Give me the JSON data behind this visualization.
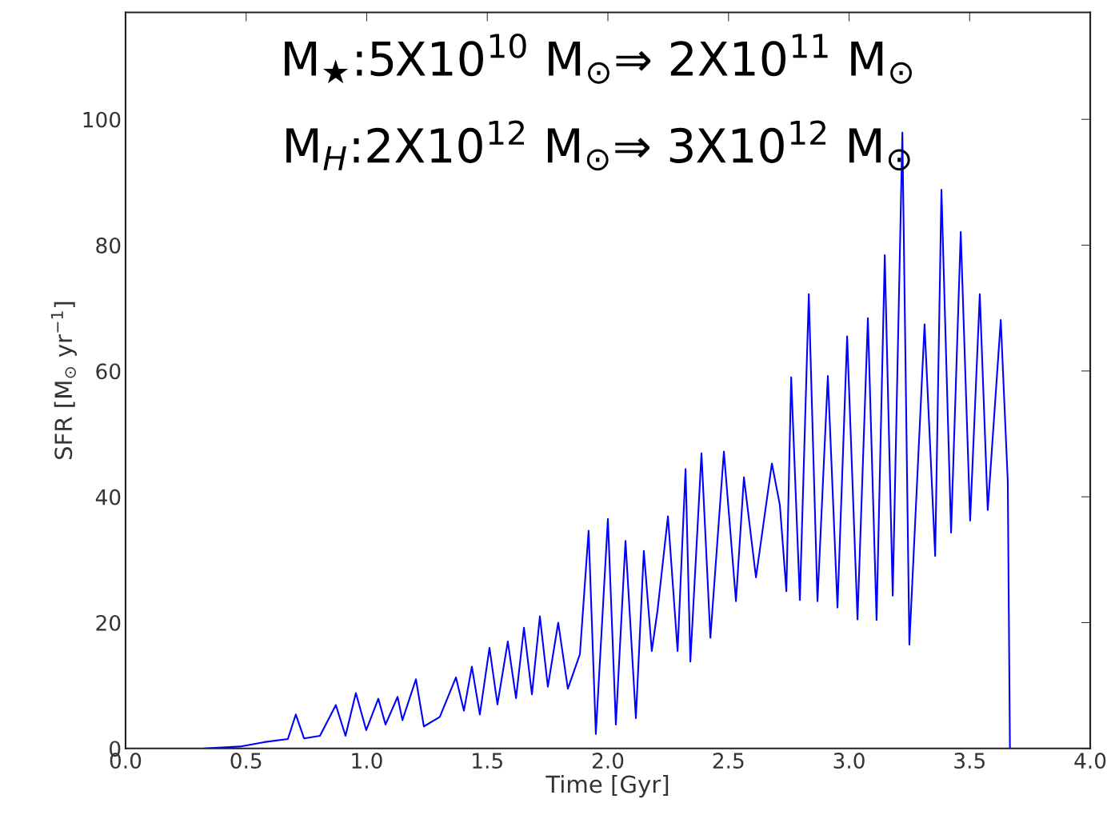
{
  "chart_data": {
    "type": "line",
    "xlabel": "Time [Gyr]",
    "ylabel": "SFR [M$_{⊙}$ yr$^{−1}$]",
    "annotations": [
      "M$_{★}$:5X10$^{10}$ M$_{⊙}$⇒ 2X10$^{11}$ M$_{⊙}$",
      "M$_{H}$:2X10$^{12}$ M$_{⊙}$⇒ 3X10$^{12}$ M$_{⊙}$"
    ],
    "xlim": [
      0.0,
      4.0
    ],
    "ylim": [
      0,
      117
    ],
    "xticks": [
      {
        "value": 0,
        "label": "0.0"
      },
      {
        "value": 0.5,
        "label": "0.5"
      },
      {
        "value": 1,
        "label": "1.0"
      },
      {
        "value": 1.5,
        "label": "1.5"
      },
      {
        "value": 2,
        "label": "2.0"
      },
      {
        "value": 2.5,
        "label": "2.5"
      },
      {
        "value": 3,
        "label": "3.0"
      },
      {
        "value": 3.5,
        "label": "3.5"
      },
      {
        "value": 4,
        "label": "4.0"
      }
    ],
    "yticks": [
      0,
      20,
      40,
      60,
      80,
      100
    ],
    "grid": false,
    "marker": "none",
    "line_style": "solid",
    "series": [
      {
        "color": "#0000ff",
        "x": [
          0.325,
          0.474,
          0.574,
          0.673,
          0.706,
          0.74,
          0.806,
          0.872,
          0.912,
          0.955,
          0.998,
          1.048,
          1.078,
          1.128,
          1.148,
          1.204,
          1.237,
          1.303,
          1.37,
          1.403,
          1.436,
          1.469,
          1.509,
          1.542,
          1.585,
          1.619,
          1.652,
          1.685,
          1.718,
          1.751,
          1.794,
          1.834,
          1.884,
          1.92,
          1.95,
          2.0,
          2.033,
          2.073,
          2.116,
          2.149,
          2.182,
          2.206,
          2.249,
          2.289,
          2.322,
          2.342,
          2.388,
          2.425,
          2.481,
          2.531,
          2.564,
          2.614,
          2.68,
          2.713,
          2.74,
          2.76,
          2.796,
          2.833,
          2.869,
          2.912,
          2.952,
          2.992,
          3.035,
          3.078,
          3.114,
          3.148,
          3.181,
          3.221,
          3.25,
          3.313,
          3.357,
          3.383,
          3.423,
          3.463,
          3.502,
          3.542,
          3.575,
          3.629,
          3.658,
          3.667
        ],
        "values": [
          0,
          0.3,
          1,
          1.5,
          5.4,
          1.6,
          2,
          6.9,
          2,
          8.8,
          2.9,
          7.9,
          3.8,
          8.2,
          4.5,
          11,
          3.5,
          5,
          11.3,
          6,
          13,
          5.4,
          16,
          7,
          17,
          8,
          19.2,
          8.6,
          21,
          9.8,
          20,
          9.5,
          15,
          34.6,
          2.3,
          36.5,
          3.8,
          33,
          4.8,
          31.4,
          15.5,
          22,
          36.9,
          15.5,
          44.4,
          13.8,
          46.9,
          17.6,
          47.2,
          23.4,
          43.1,
          27.2,
          45.3,
          38.7,
          25,
          59,
          23.6,
          72.2,
          23.4,
          59.2,
          22.4,
          65.5,
          20.5,
          68.4,
          20.4,
          78.4,
          24.3,
          97.9,
          16.5,
          67.4,
          30.6,
          88.8,
          34.3,
          82.1,
          36.2,
          72.2,
          37.9,
          68.1,
          42.5,
          0
        ]
      }
    ]
  }
}
